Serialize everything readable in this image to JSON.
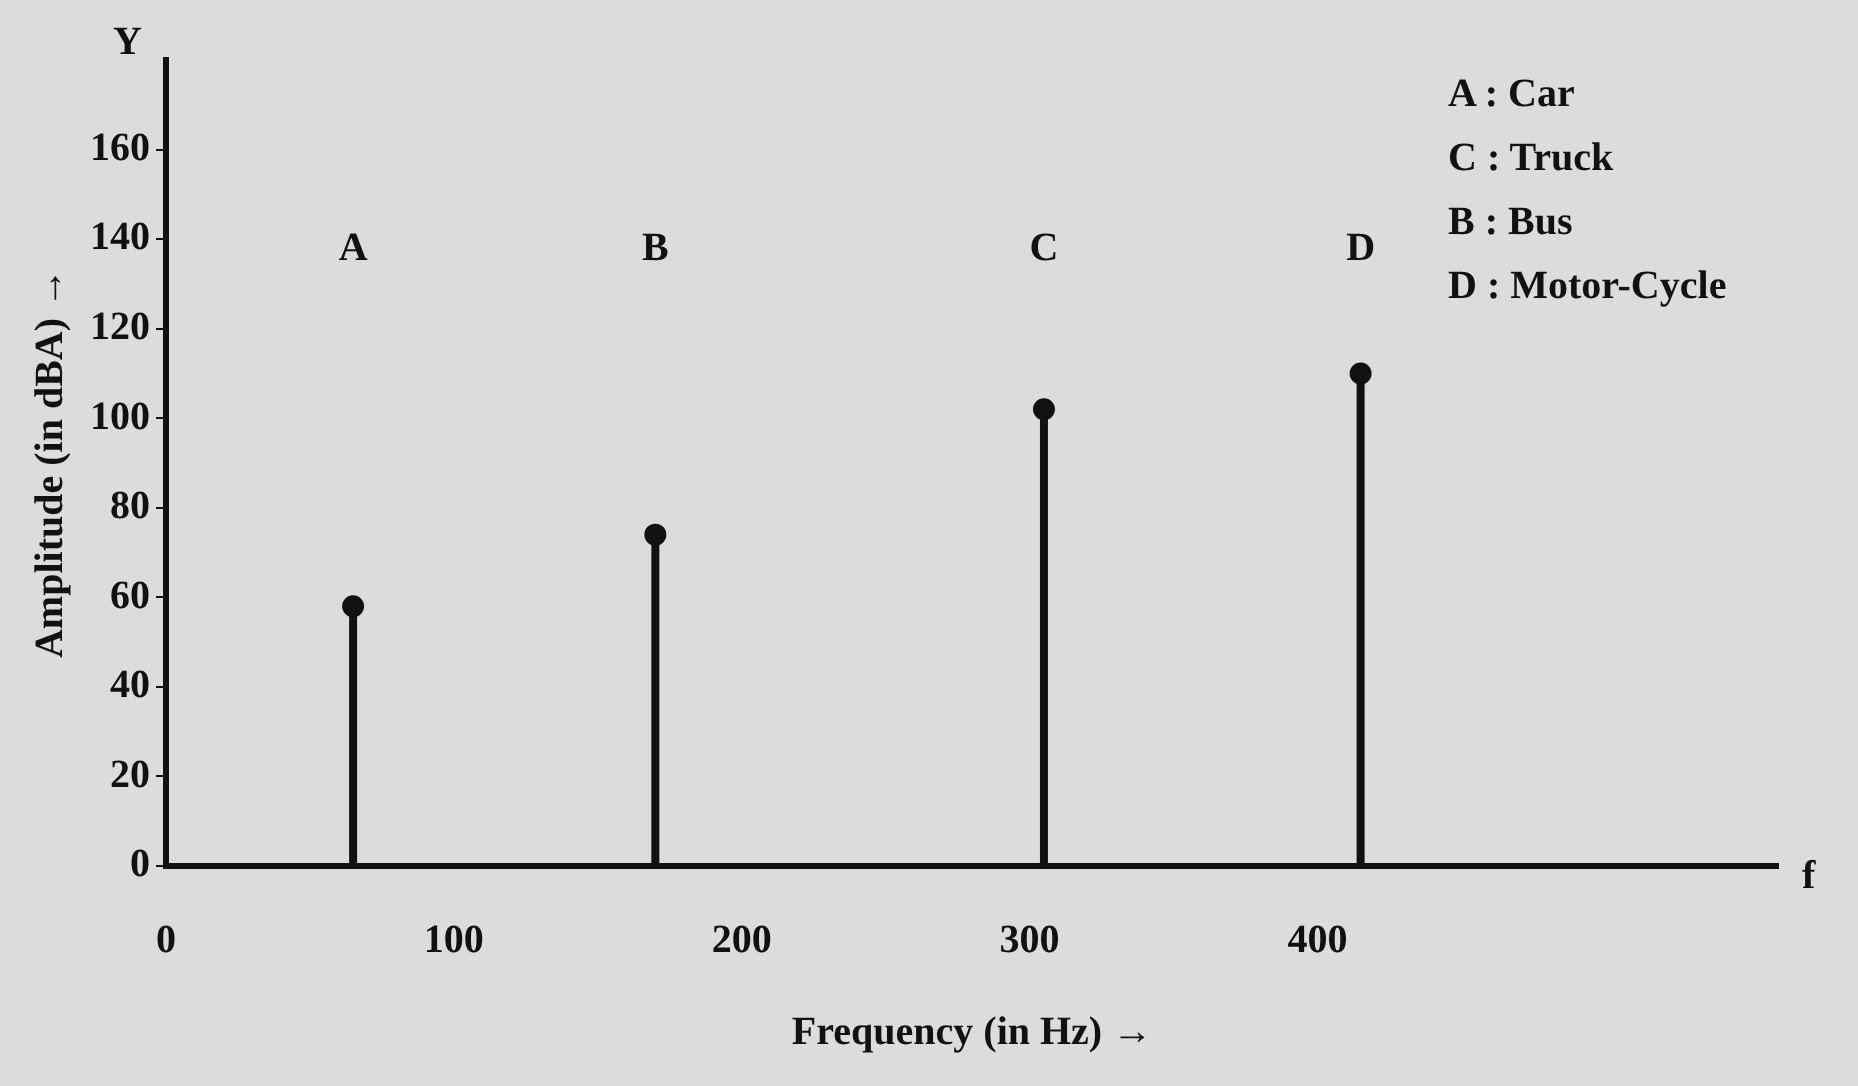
{
  "chart_data": {
    "type": "lollipop",
    "xlabel": "Frequency (in Hz) →",
    "ylabel": "Amplitude (in dBA) →",
    "series": [
      {
        "color": "#111111",
        "x": [
          65,
          170,
          305,
          415
        ],
        "values": [
          58,
          74,
          102,
          110
        ]
      }
    ],
    "xlim": [
      0,
      560
    ],
    "xticks": [
      0,
      100,
      200,
      300,
      400
    ],
    "ylim": [
      0,
      180
    ],
    "yticks": [
      0,
      20,
      40,
      60,
      80,
      100,
      120,
      140,
      160
    ],
    "grid": false,
    "marker": "circle",
    "annotations": [
      "A",
      "B",
      "C",
      "D",
      "Y",
      "f",
      "A : Car",
      "C : Truck",
      "B : Bus",
      "D : Motor-Cycle"
    ]
  }
}
